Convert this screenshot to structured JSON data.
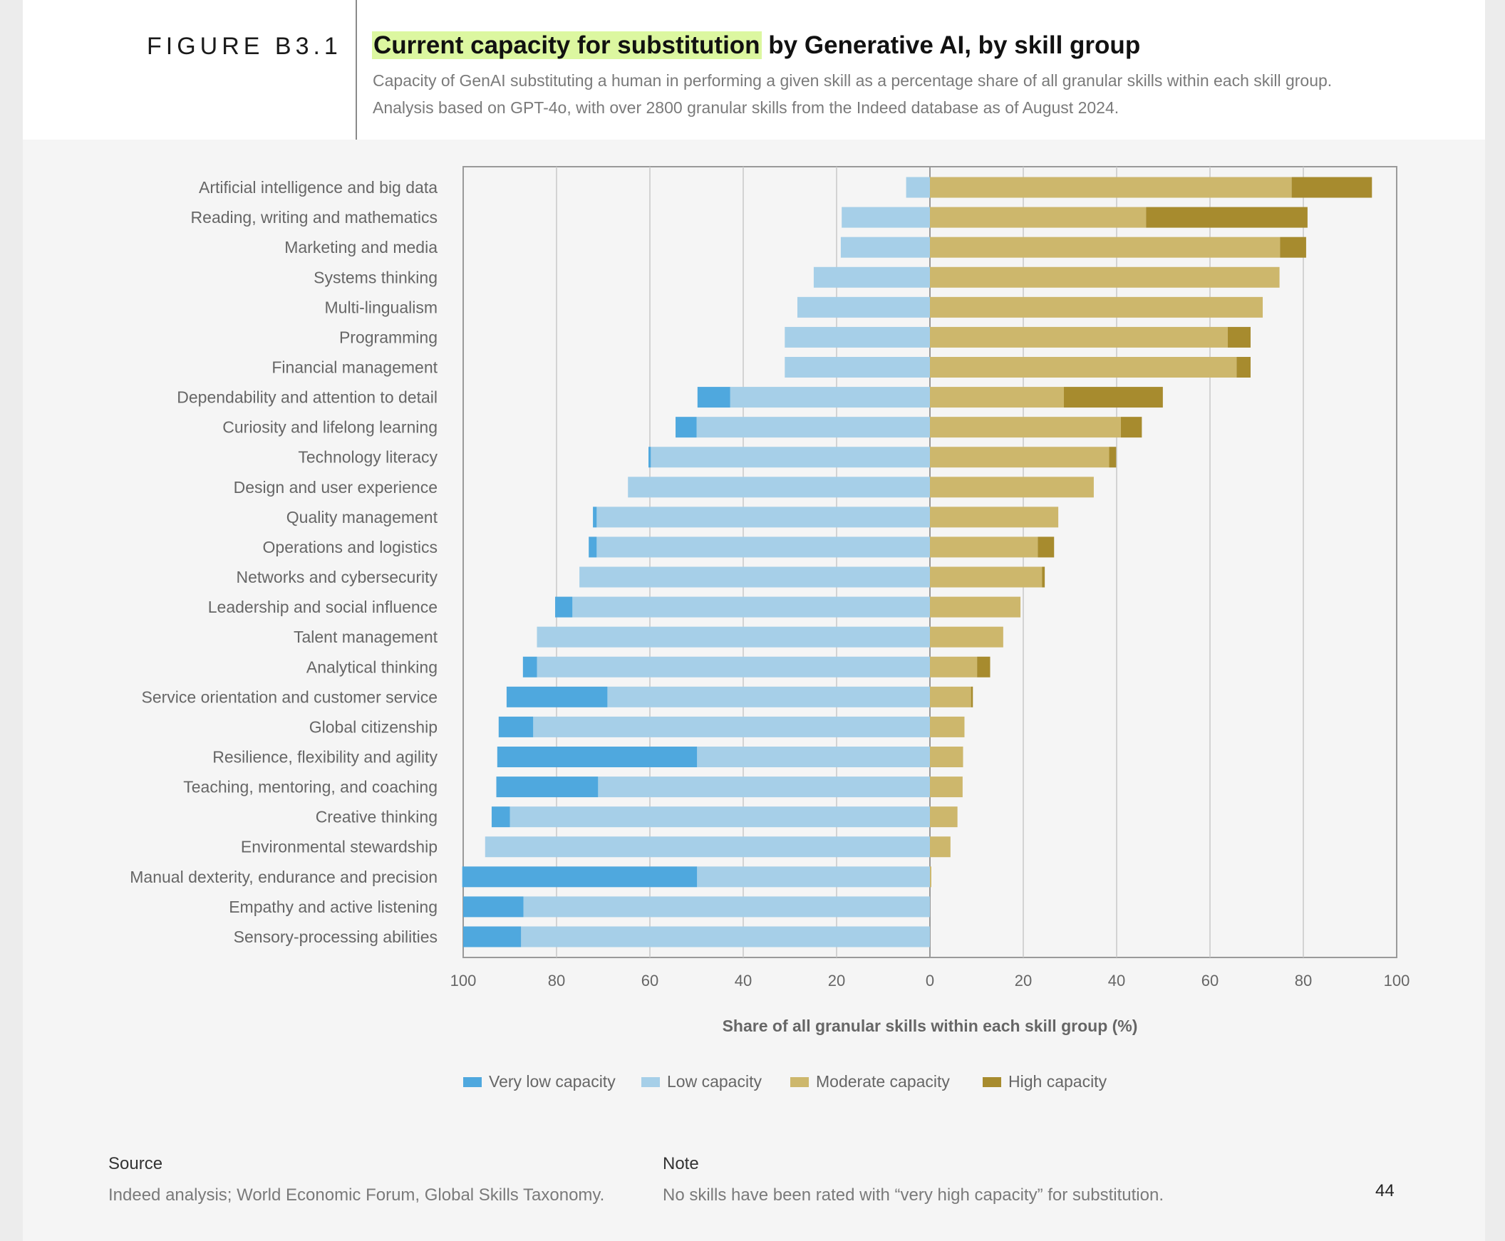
{
  "figure": {
    "label": "FIGURE B3.1",
    "title_highlight": "Current capacity for substitution",
    "title_rest": " by Generative AI, by skill group",
    "subtitle_line1": "Capacity of GenAI substituting a human in performing a given skill as a percentage share of all granular skills within each skill group.",
    "subtitle_line2": "Analysis based on GPT-4o, with over 2800 granular skills from the Indeed database as of August 2024."
  },
  "colors": {
    "very_low": "#4fa8de",
    "low": "#a6cfe8",
    "moderate": "#cdb76c",
    "high": "#a78b2e",
    "grid": "#c8c8c8",
    "axis": "#9a9a9a",
    "text": "#666666"
  },
  "chart_data": {
    "type": "bar",
    "orientation": "horizontal-diverging",
    "xlabel": "Share of all granular skills within each skill group (%)",
    "xlim": [
      -100,
      100
    ],
    "xticks": [
      "100",
      "80",
      "60",
      "40",
      "20",
      "0",
      "20",
      "40",
      "60",
      "80",
      "100"
    ],
    "categories": [
      "Artificial intelligence and big data",
      "Reading, writing and mathematics",
      "Marketing and media",
      "Systems thinking",
      "Multi-lingualism",
      "Programming",
      "Financial management",
      "Dependability and attention to detail",
      "Curiosity and lifelong learning",
      "Technology literacy",
      "Design and user experience",
      "Quality management",
      "Operations and logistics",
      "Networks and cybersecurity",
      "Leadership and social influence",
      "Talent management",
      "Analytical thinking",
      "Service orientation and customer service",
      "Global citizenship",
      "Resilience, flexibility and agility",
      "Teaching, mentoring, and coaching",
      "Creative thinking",
      "Environmental stewardship",
      "Manual dexterity, endurance and precision",
      "Empathy and active listening",
      "Sensory-processing abilities"
    ],
    "series": [
      {
        "name": "Very low capacity",
        "side": "left",
        "values": [
          0,
          0,
          0,
          0,
          0,
          0,
          0,
          7,
          4.5,
          0.5,
          0,
          0.8,
          1.7,
          0,
          3.7,
          0,
          3,
          21.6,
          7.4,
          42.8,
          21.8,
          3.9,
          0,
          50.3,
          12.9,
          12.4
        ]
      },
      {
        "name": "Low capacity",
        "side": "left",
        "values": [
          5.1,
          18.9,
          19.1,
          24.9,
          28.4,
          31.1,
          31.1,
          42.8,
          50,
          59.8,
          64.7,
          71.4,
          71.4,
          75.1,
          76.6,
          84.2,
          84.2,
          69.1,
          85,
          49.9,
          71.1,
          90,
          95.3,
          49.9,
          87.1,
          87.6
        ]
      },
      {
        "name": "Moderate capacity",
        "side": "right",
        "values": [
          77.5,
          46.3,
          75,
          74.9,
          71.3,
          63.8,
          65.7,
          28.7,
          40.9,
          38.4,
          35.1,
          27.5,
          23.1,
          24,
          19.4,
          15.7,
          10.1,
          8.8,
          7.4,
          7.1,
          7,
          5.9,
          4.4,
          0.3,
          0,
          0
        ]
      },
      {
        "name": "High capacity",
        "side": "right",
        "values": [
          17.2,
          34.6,
          5.6,
          0,
          0,
          4.9,
          3,
          21.2,
          4.5,
          1.5,
          0,
          0,
          3.5,
          0.6,
          0,
          0,
          2.8,
          0.4,
          0,
          0,
          0,
          0,
          0,
          0,
          0,
          0
        ]
      }
    ],
    "legend_position": "bottom-center",
    "grid": true
  },
  "footer": {
    "source_heading": "Source",
    "source_text": "Indeed analysis; World Economic Forum, Global Skills Taxonomy.",
    "note_heading": "Note",
    "note_text": "No skills have been rated with “very high capacity” for substitution.",
    "page_number": "44"
  }
}
